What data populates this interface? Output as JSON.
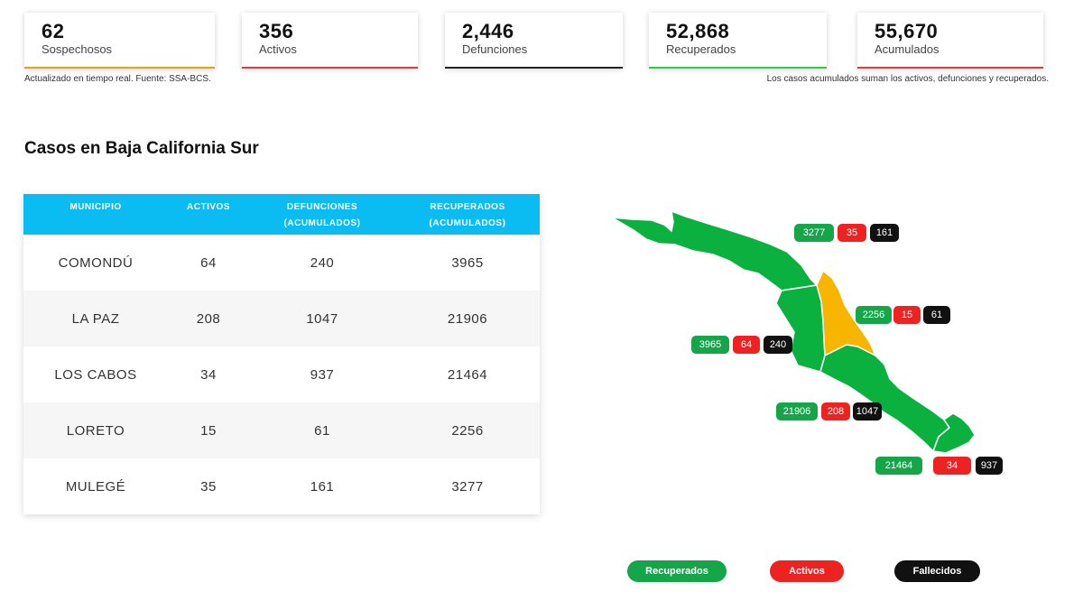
{
  "stats": [
    {
      "value": "62",
      "label": "Sospechosos",
      "color": "#f39c12"
    },
    {
      "value": "356",
      "label": "Activos",
      "color": "#e53935"
    },
    {
      "value": "2,446",
      "label": "Defunciones",
      "color": "#222222"
    },
    {
      "value": "52,868",
      "label": "Recuperados",
      "color": "#2ecc40"
    },
    {
      "value": "55,670",
      "label": "Acumulados",
      "color": "#e53935"
    }
  ],
  "notes": {
    "left": "Actualizado en tiempo real. Fuente: SSA-BCS.",
    "right": "Los casos acumulados suman los activos, defunciones y recuperados."
  },
  "section_title": "Casos en Baja California Sur",
  "table": {
    "headers": [
      "MUNICIPIO",
      "ACTIVOS",
      "DEFUNCIONES",
      "(ACUMULADOS)",
      "RECUPERADOS",
      "(ACUMULADOS)"
    ],
    "rows": [
      {
        "municipio": "COMONDÚ",
        "activos": "64",
        "defunciones": "240",
        "recuperados": "3965"
      },
      {
        "municipio": "LA PAZ",
        "activos": "208",
        "defunciones": "1047",
        "recuperados": "21906"
      },
      {
        "municipio": "LOS CABOS",
        "activos": "34",
        "defunciones": "937",
        "recuperados": "21464"
      },
      {
        "municipio": "LORETO",
        "activos": "15",
        "defunciones": "61",
        "recuperados": "2256"
      },
      {
        "municipio": "MULEGÉ",
        "activos": "35",
        "defunciones": "161",
        "recuperados": "3277"
      }
    ]
  },
  "map_badges": {
    "mulege": {
      "recuperados": "3277",
      "activos": "35",
      "fallecidos": "161"
    },
    "loreto": {
      "recuperados": "2256",
      "activos": "15",
      "fallecidos": "61"
    },
    "comondu": {
      "recuperados": "3965",
      "activos": "64",
      "fallecidos": "240"
    },
    "lapaz": {
      "recuperados": "21906",
      "activos": "208",
      "fallecidos": "1047"
    },
    "loscabos": {
      "recuperados": "21464",
      "activos": "34",
      "fallecidos": "937"
    }
  },
  "legend": {
    "recuperados": "Recuperados",
    "activos": "Activos",
    "fallecidos": "Fallecidos"
  },
  "colors": {
    "header": "#0bbcf3",
    "map_green": "#0bb13f",
    "map_yellow": "#f7b500",
    "recuperados": "#16a64a",
    "activos": "#ef2222",
    "fallecidos": "#111111"
  }
}
